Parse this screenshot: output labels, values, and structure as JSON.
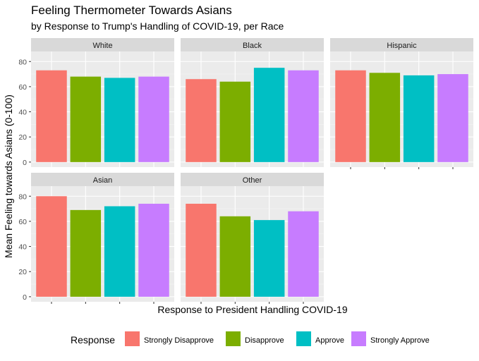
{
  "chart_data": {
    "type": "bar",
    "title": "Feeling Thermometer Towards Asians",
    "subtitle": "by Response to Trump's Handling of COVID-19, per Race",
    "xlabel": "Response to President Handling COVID-19",
    "ylabel": "Mean Feeling towards Asians (0-100)",
    "ylim": [
      -4,
      88
    ],
    "yticks": [
      0,
      20,
      40,
      60,
      80
    ],
    "grid": true,
    "legend": {
      "title": "Response",
      "placement": "bottom",
      "entries": [
        "Strongly Disapprove",
        "Disapprove",
        "Approve",
        "Strongly Approve"
      ],
      "colors": [
        "#F8766D",
        "#7CAE00",
        "#00BFC4",
        "#C77CFF"
      ]
    },
    "categories": [
      "Strongly Disapprove",
      "Disapprove",
      "Approve",
      "Strongly Approve"
    ],
    "panels": [
      {
        "name": "White",
        "values": [
          73,
          68,
          67,
          68
        ]
      },
      {
        "name": "Black",
        "values": [
          66,
          64,
          75,
          73
        ]
      },
      {
        "name": "Hispanic",
        "values": [
          73,
          71,
          69,
          70
        ]
      },
      {
        "name": "Asian",
        "values": [
          80,
          69,
          72,
          74
        ]
      },
      {
        "name": "Other",
        "values": [
          74,
          64,
          61,
          68
        ]
      }
    ]
  }
}
